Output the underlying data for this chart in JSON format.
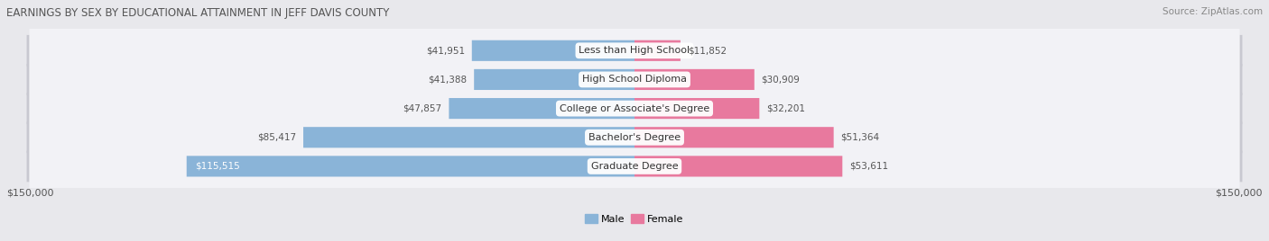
{
  "title": "EARNINGS BY SEX BY EDUCATIONAL ATTAINMENT IN JEFF DAVIS COUNTY",
  "source": "Source: ZipAtlas.com",
  "categories": [
    "Less than High School",
    "High School Diploma",
    "College or Associate's Degree",
    "Bachelor's Degree",
    "Graduate Degree"
  ],
  "male_values": [
    41951,
    41388,
    47857,
    85417,
    115515
  ],
  "female_values": [
    11852,
    30909,
    32201,
    51364,
    53611
  ],
  "male_color": "#8ab4d8",
  "female_color": "#e8799e",
  "male_label": "Male",
  "female_label": "Female",
  "max_val": 150000,
  "bg_color": "#e8e8ec",
  "row_bg_color": "#d8d8e0",
  "row_inner_color": "#f2f2f6",
  "label_color": "#555555",
  "title_color": "#555555",
  "axis_label_left": "$150,000",
  "axis_label_right": "$150,000",
  "male_value_inside_threshold": 100000
}
